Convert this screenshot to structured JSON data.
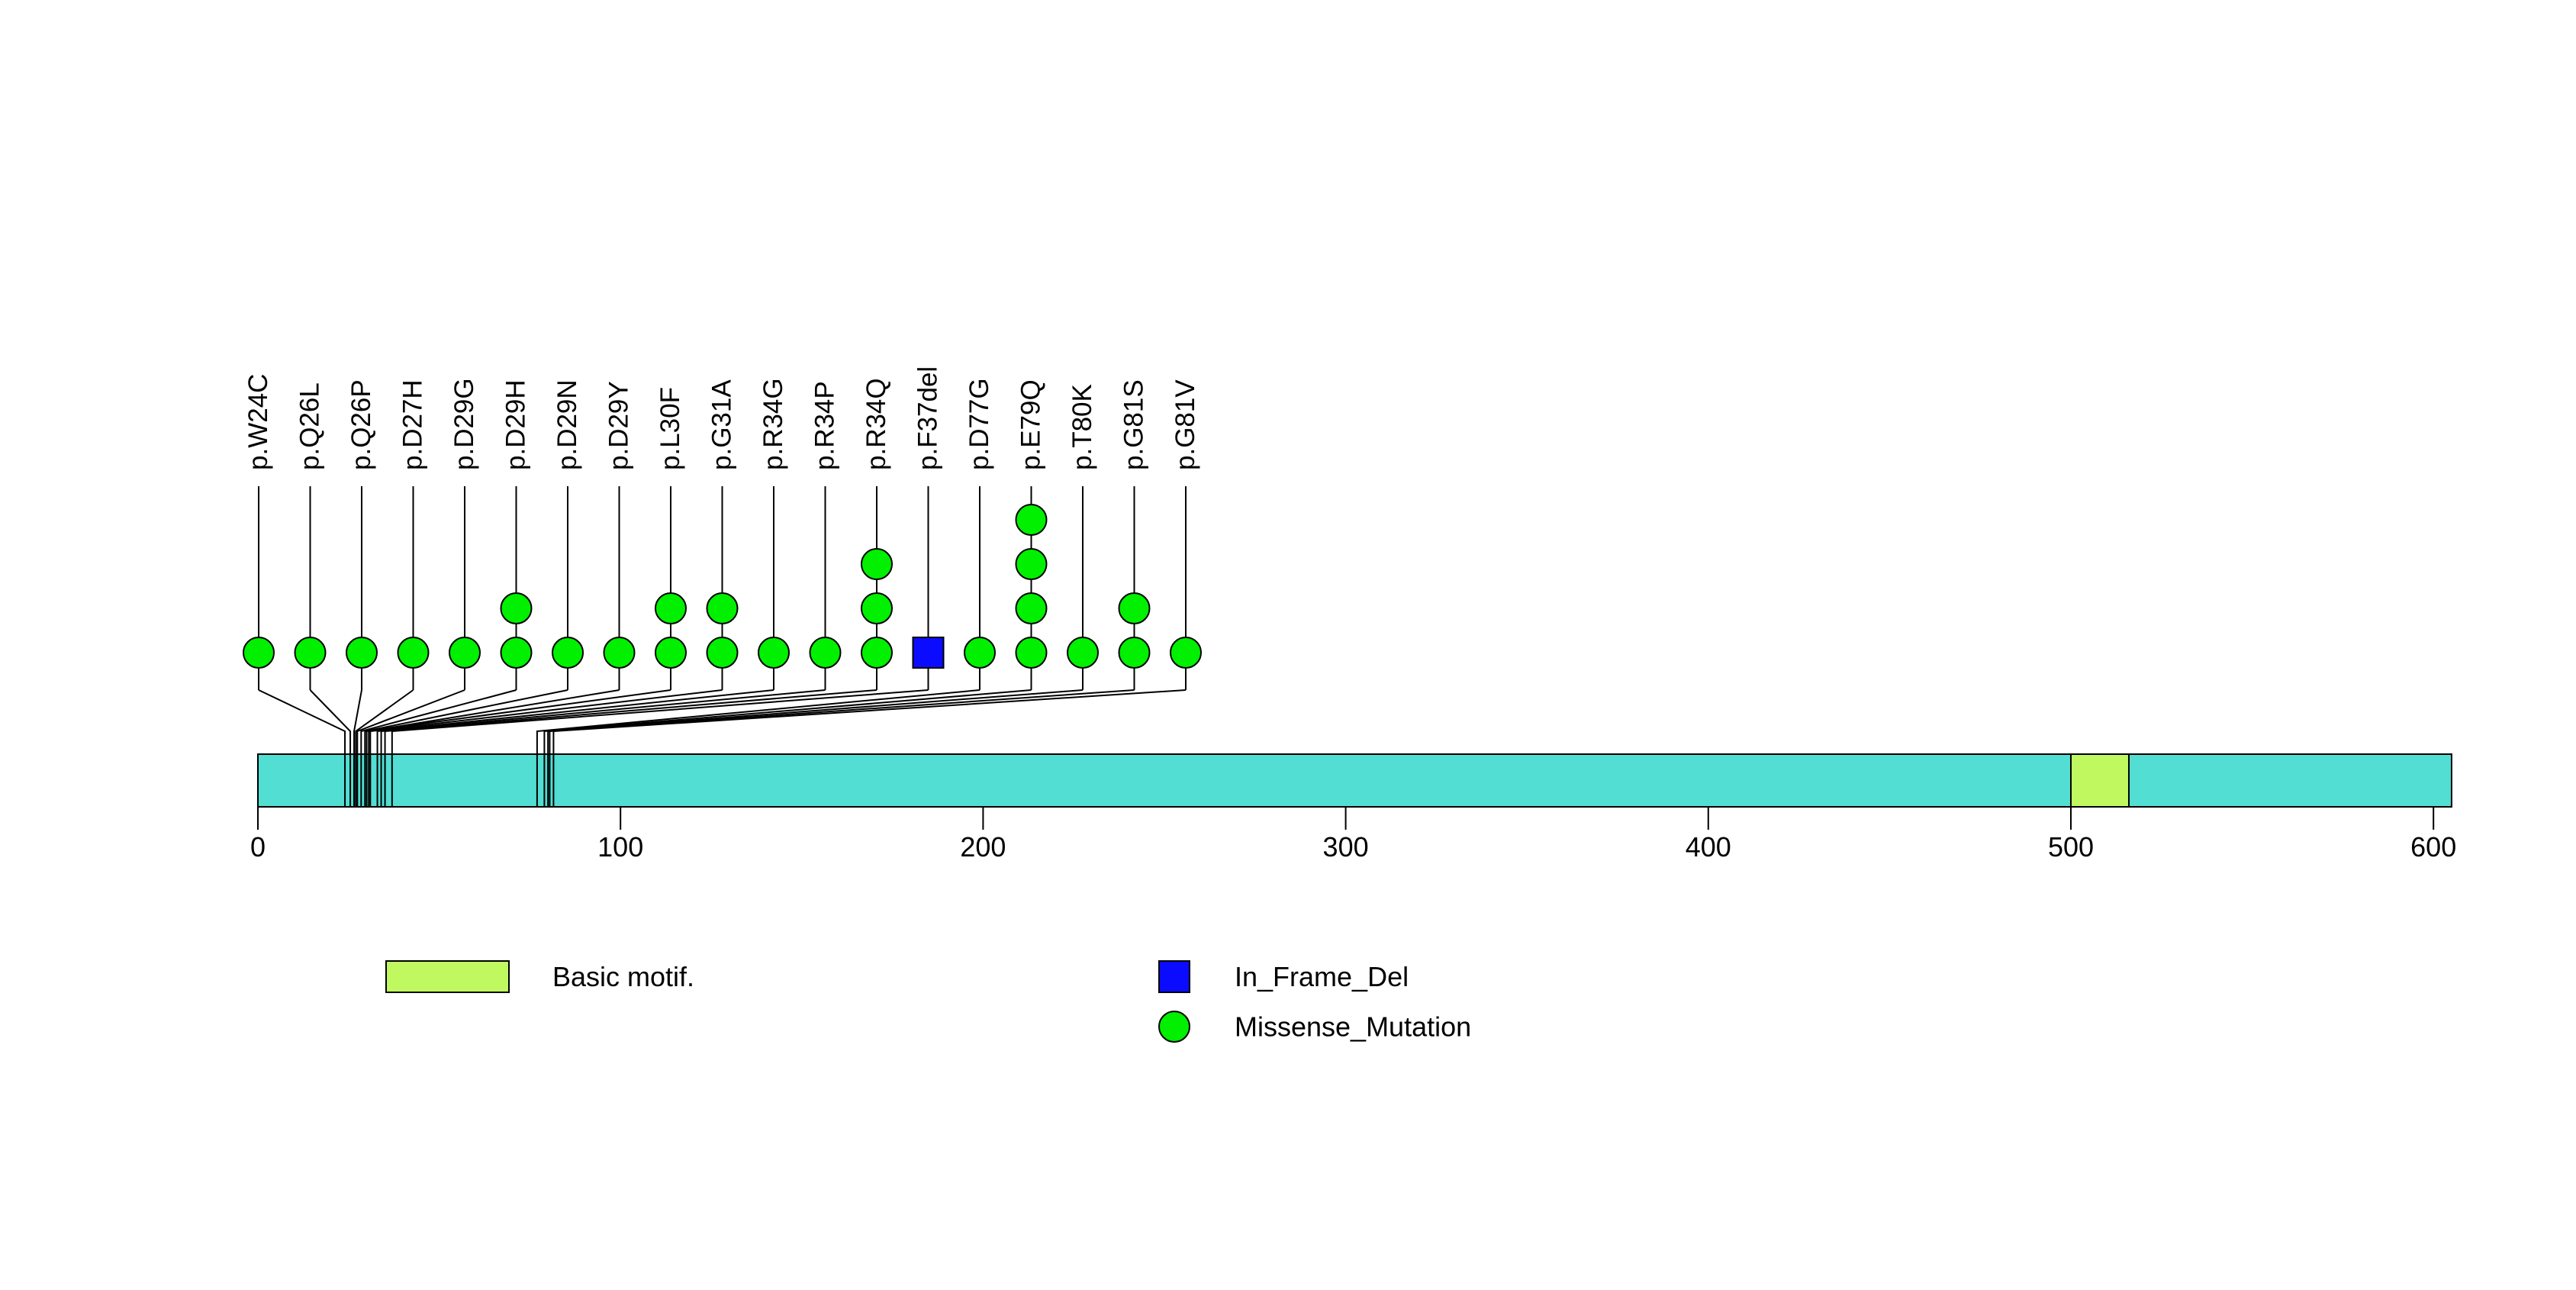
{
  "figure": {
    "background": "#ffffff",
    "text_color": "#000000"
  },
  "chart_data": {
    "type": "lollipop",
    "title": "",
    "xlabel": "",
    "axis": {
      "tick_values": [
        0,
        100,
        200,
        300,
        400,
        500,
        600
      ],
      "range": [
        0,
        605
      ]
    },
    "protein": {
      "length": 605,
      "bar_color": "#52DED2",
      "outline_color": "#000000"
    },
    "domains": [
      {
        "label": "Basic motif.",
        "start": 500,
        "end": 516,
        "color": "#C0F860"
      }
    ],
    "mutation_types": [
      {
        "name": "In_Frame_Del",
        "shape": "square",
        "color": "#0B0BFF"
      },
      {
        "name": "Missense_Mutation",
        "shape": "circle",
        "color": "#00F000"
      }
    ],
    "mutations": [
      {
        "label": "p.W24C",
        "position": 24,
        "count": 1,
        "type": "Missense_Mutation"
      },
      {
        "label": "p.Q26L",
        "position": 26,
        "count": 1,
        "type": "Missense_Mutation"
      },
      {
        "label": "p.Q26P",
        "position": 26,
        "count": 1,
        "type": "Missense_Mutation"
      },
      {
        "label": "p.D27H",
        "position": 27,
        "count": 1,
        "type": "Missense_Mutation"
      },
      {
        "label": "p.D29G",
        "position": 29,
        "count": 1,
        "type": "Missense_Mutation"
      },
      {
        "label": "p.D29H",
        "position": 29,
        "count": 2,
        "type": "Missense_Mutation"
      },
      {
        "label": "p.D29N",
        "position": 29,
        "count": 1,
        "type": "Missense_Mutation"
      },
      {
        "label": "p.D29Y",
        "position": 29,
        "count": 1,
        "type": "Missense_Mutation"
      },
      {
        "label": "p.L30F",
        "position": 30,
        "count": 2,
        "type": "Missense_Mutation"
      },
      {
        "label": "p.G31A",
        "position": 31,
        "count": 2,
        "type": "Missense_Mutation"
      },
      {
        "label": "p.R34G",
        "position": 34,
        "count": 1,
        "type": "Missense_Mutation"
      },
      {
        "label": "p.R34P",
        "position": 34,
        "count": 1,
        "type": "Missense_Mutation"
      },
      {
        "label": "p.R34Q",
        "position": 34,
        "count": 3,
        "type": "Missense_Mutation"
      },
      {
        "label": "p.F37del",
        "position": 37,
        "count": 1,
        "type": "In_Frame_Del"
      },
      {
        "label": "p.D77G",
        "position": 77,
        "count": 1,
        "type": "Missense_Mutation"
      },
      {
        "label": "p.E79Q",
        "position": 79,
        "count": 4,
        "type": "Missense_Mutation"
      },
      {
        "label": "p.T80K",
        "position": 80,
        "count": 1,
        "type": "Missense_Mutation"
      },
      {
        "label": "p.G81S",
        "position": 81,
        "count": 2,
        "type": "Missense_Mutation"
      },
      {
        "label": "p.G81V",
        "position": 81,
        "count": 1,
        "type": "Missense_Mutation"
      }
    ],
    "legend": [
      {
        "label": "Basic motif.",
        "swatch": "rect",
        "color": "#C0F860"
      },
      {
        "label": "In_Frame_Del",
        "swatch": "square",
        "color": "#0B0BFF"
      },
      {
        "label": "Missense_Mutation",
        "swatch": "circle",
        "color": "#00F000"
      }
    ]
  }
}
